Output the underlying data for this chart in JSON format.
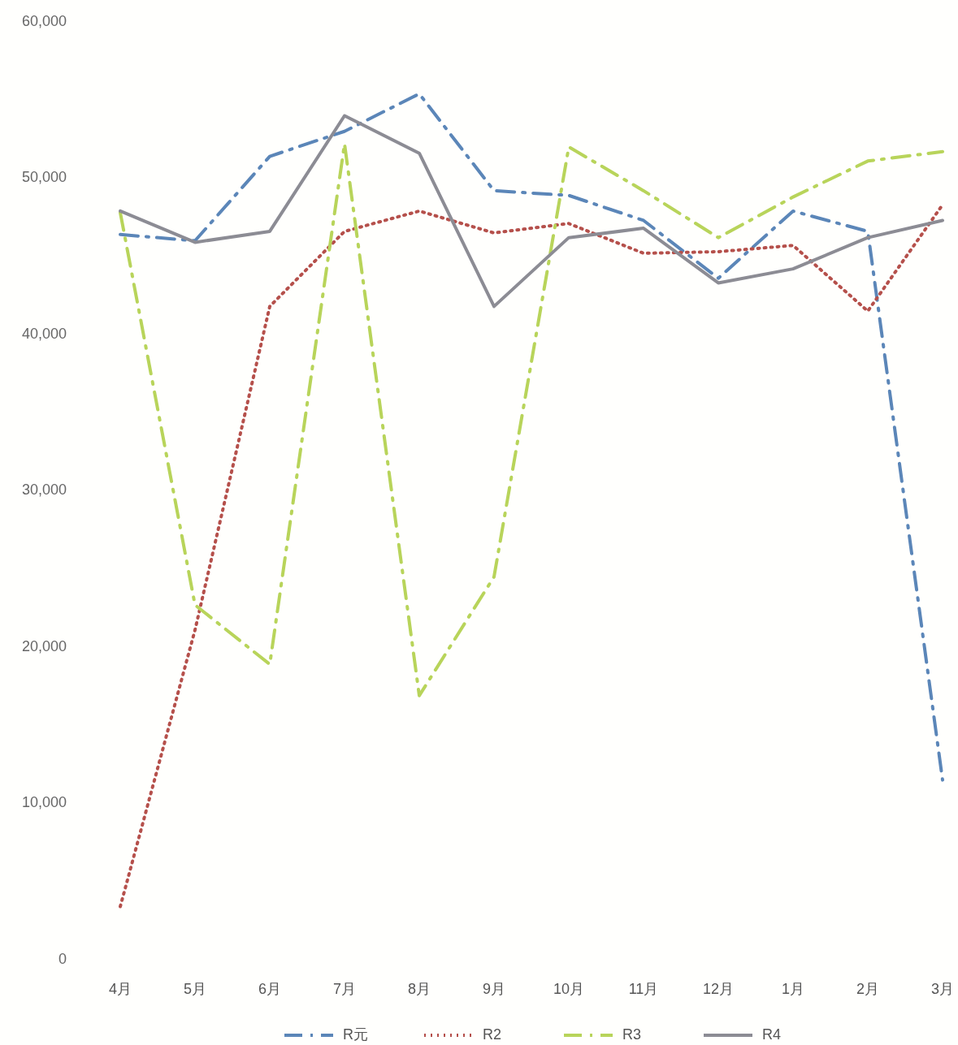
{
  "chart_data": {
    "type": "line",
    "categories": [
      "4月",
      "5月",
      "6月",
      "7月",
      "8月",
      "9月",
      "10月",
      "11月",
      "12月",
      "1月",
      "2月",
      "3月"
    ],
    "ylim": [
      0,
      60000
    ],
    "yticks": [
      {
        "value": 0,
        "label": "0"
      },
      {
        "value": 10000,
        "label": "10,000"
      },
      {
        "value": 20000,
        "label": "20,000"
      },
      {
        "value": 30000,
        "label": "30,000"
      },
      {
        "value": 40000,
        "label": "40,000"
      },
      {
        "value": 50000,
        "label": "50,000"
      },
      {
        "value": 60000,
        "label": "60,000"
      }
    ],
    "grid": false,
    "legend": "bottom",
    "marker": "none",
    "series": [
      {
        "name": "R元",
        "color": "#5b86b8",
        "line_style": "dashed",
        "values": [
          46400,
          46000,
          51400,
          53000,
          55400,
          49200,
          48900,
          47300,
          43600,
          47900,
          46600,
          11500
        ]
      },
      {
        "name": "R2",
        "color": "#b5504b",
        "line_style": "dotted",
        "values": [
          3400,
          21100,
          41800,
          46600,
          47900,
          46500,
          47100,
          45200,
          45300,
          45700,
          41500,
          48300
        ]
      },
      {
        "name": "R3",
        "color": "#b8d45a",
        "line_style": "dashed",
        "values": [
          47800,
          22700,
          18900,
          52200,
          16900,
          24500,
          52000,
          49200,
          46200,
          48800,
          51100,
          51700
        ]
      },
      {
        "name": "R4",
        "color": "#8c8c94",
        "line_style": "solid",
        "values": [
          47900,
          45900,
          46600,
          54000,
          51600,
          41800,
          46200,
          46800,
          43300,
          44200,
          46200,
          47300
        ]
      }
    ]
  }
}
